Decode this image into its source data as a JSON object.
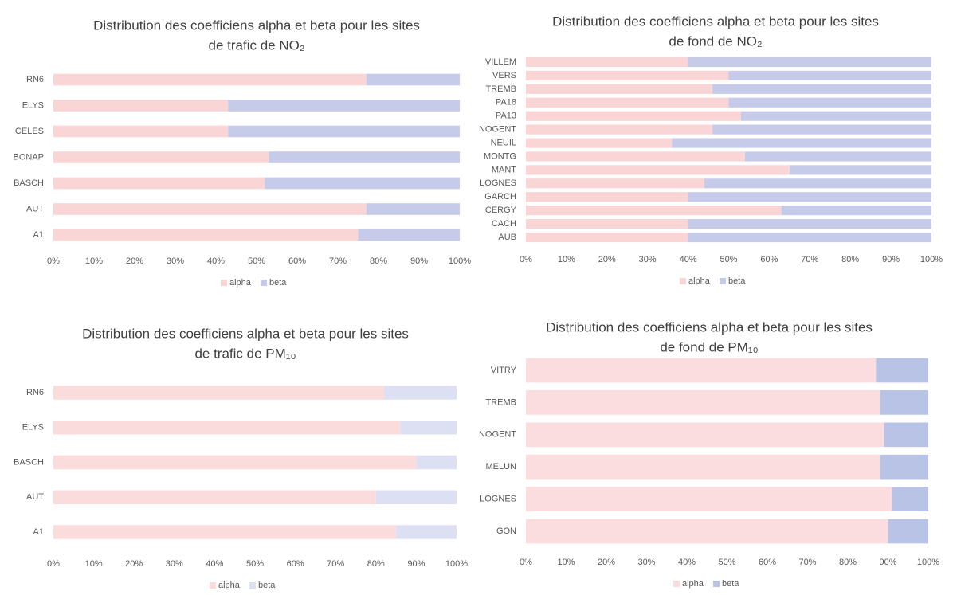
{
  "chart_data": [
    {
      "type": "stacked-bar",
      "title": [
        "Distribution des coefficiens alpha et beta pour les sites",
        "de trafic de NO₂"
      ],
      "categories": [
        "RN6",
        "ELYS",
        "CELES",
        "BONAP",
        "BASCH",
        "AUT",
        "A1"
      ],
      "series": [
        {
          "name": "alpha",
          "color": "#f9d5d5",
          "values": [
            77,
            43,
            43,
            53,
            52,
            77,
            75
          ]
        },
        {
          "name": "beta",
          "color": "#c6cbe9",
          "values": [
            23,
            57,
            57,
            47,
            48,
            23,
            25
          ]
        }
      ],
      "xlim": [
        0,
        100
      ],
      "xticks": [
        {
          "value": 0,
          "label": "0%"
        },
        {
          "value": 10,
          "label": "10%"
        },
        {
          "value": 20,
          "label": "20%"
        },
        {
          "value": 30,
          "label": "30%"
        },
        {
          "value": 40,
          "label": "40%"
        },
        {
          "value": 50,
          "label": "50%"
        },
        {
          "value": 60,
          "label": "60%"
        },
        {
          "value": 70,
          "label": "70%"
        },
        {
          "value": 80,
          "label": "80%"
        },
        {
          "value": 90,
          "label": "90%"
        },
        {
          "value": 100,
          "label": "100%"
        }
      ],
      "legend": "bottom"
    },
    {
      "type": "stacked-bar",
      "title": [
        "Distribution des coefficiens alpha et beta pour les sites",
        "de fond de NO₂"
      ],
      "categories": [
        "VILLEM",
        "VERS",
        "TREMB",
        "PA18",
        "PA13",
        "NOGENT",
        "NEUIL",
        "MONTG",
        "MANT",
        "LOGNES",
        "GARCH",
        "CERGY",
        "CACH",
        "AUB"
      ],
      "series": [
        {
          "name": "alpha",
          "color": "#f9d5d5",
          "values": [
            40,
            50,
            46,
            50,
            53,
            46,
            36,
            54,
            65,
            44,
            40,
            63,
            40,
            40
          ]
        },
        {
          "name": "beta",
          "color": "#c6cbe9",
          "values": [
            60,
            50,
            54,
            50,
            47,
            54,
            64,
            46,
            35,
            56,
            60,
            37,
            60,
            60
          ]
        }
      ],
      "xlim": [
        0,
        100
      ],
      "xticks": [
        {
          "value": 0,
          "label": "0%"
        },
        {
          "value": 10,
          "label": "10%"
        },
        {
          "value": 20,
          "label": "20%"
        },
        {
          "value": 30,
          "label": "30%"
        },
        {
          "value": 40,
          "label": "40%"
        },
        {
          "value": 50,
          "label": "50%"
        },
        {
          "value": 60,
          "label": "60%"
        },
        {
          "value": 70,
          "label": "70%"
        },
        {
          "value": 80,
          "label": "80%"
        },
        {
          "value": 90,
          "label": "90%"
        },
        {
          "value": 100,
          "label": "100%"
        }
      ],
      "legend": "bottom"
    },
    {
      "type": "stacked-bar",
      "title": [
        "Distribution des coefficiens alpha et beta pour les sites",
        "de trafic de PM₁₀"
      ],
      "categories": [
        "RN6",
        "ELYS",
        "BASCH",
        "AUT",
        "A1"
      ],
      "series": [
        {
          "name": "alpha",
          "color": "#fbdcdc",
          "values": [
            82,
            86,
            90,
            80,
            85
          ]
        },
        {
          "name": "beta",
          "color": "#dde0f3",
          "values": [
            18,
            14,
            10,
            20,
            15
          ]
        }
      ],
      "xlim": [
        0,
        100
      ],
      "xticks": [
        {
          "value": 0,
          "label": "0%"
        },
        {
          "value": 10,
          "label": "10%"
        },
        {
          "value": 20,
          "label": "20%"
        },
        {
          "value": 30,
          "label": "30%"
        },
        {
          "value": 40,
          "label": "40%"
        },
        {
          "value": 50,
          "label": "50%"
        },
        {
          "value": 60,
          "label": "60%"
        },
        {
          "value": 70,
          "label": "70%"
        },
        {
          "value": 80,
          "label": "80%"
        },
        {
          "value": 90,
          "label": "90%"
        },
        {
          "value": 100,
          "label": "100%"
        }
      ],
      "legend": "bottom"
    },
    {
      "type": "stacked-bar",
      "title": [
        "Distribution des coefficiens alpha et beta pour les sites",
        "de fond de PM₁₀"
      ],
      "categories": [
        "VITRY",
        "TREMB",
        "NOGENT",
        "MELUN",
        "LOGNES",
        "GON"
      ],
      "series": [
        {
          "name": "alpha",
          "color": "#fbdcdf",
          "values": [
            87,
            88,
            89,
            88,
            91,
            90
          ]
        },
        {
          "name": "beta",
          "color": "#b9c3e6",
          "values": [
            13,
            12,
            11,
            12,
            9,
            10
          ]
        }
      ],
      "xlim": [
        0,
        100
      ],
      "xticks": [
        {
          "value": 0,
          "label": "0%"
        },
        {
          "value": 10,
          "label": "10%"
        },
        {
          "value": 20,
          "label": "20%"
        },
        {
          "value": 30,
          "label": "30%"
        },
        {
          "value": 40,
          "label": "40%"
        },
        {
          "value": 50,
          "label": "50%"
        },
        {
          "value": 60,
          "label": "60%"
        },
        {
          "value": 70,
          "label": "70%"
        },
        {
          "value": 80,
          "label": "80%"
        },
        {
          "value": 90,
          "label": "90%"
        },
        {
          "value": 100,
          "label": "100%"
        }
      ],
      "legend": "bottom"
    }
  ]
}
